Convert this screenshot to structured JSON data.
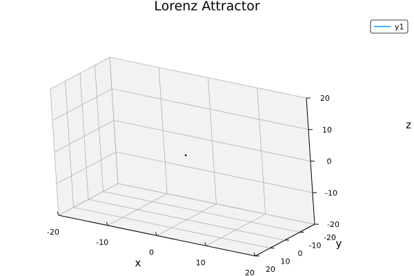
{
  "chart_data": {
    "type": "scatter",
    "title": "Lorenz Attractor",
    "xlabel": "x",
    "ylabel": "y",
    "zlabel": "z",
    "xlim": [
      -20,
      20
    ],
    "ylim": [
      -20,
      20
    ],
    "zlim": [
      -20,
      20
    ],
    "xticks": [
      -20,
      -10,
      0,
      10,
      20
    ],
    "yticks": [
      -20,
      -10,
      0,
      10,
      20
    ],
    "zticks": [
      -20,
      -10,
      0,
      10,
      20
    ],
    "grid": true,
    "legend_position": "top-right",
    "series": [
      {
        "name": "y1",
        "color": "#009af9",
        "points": [
          [
            1,
            1,
            1
          ]
        ]
      }
    ]
  },
  "colors": {
    "series": "#009af9",
    "pane": "#f2f2f2",
    "grid": "#b0b0b0",
    "axis": "#000000"
  }
}
